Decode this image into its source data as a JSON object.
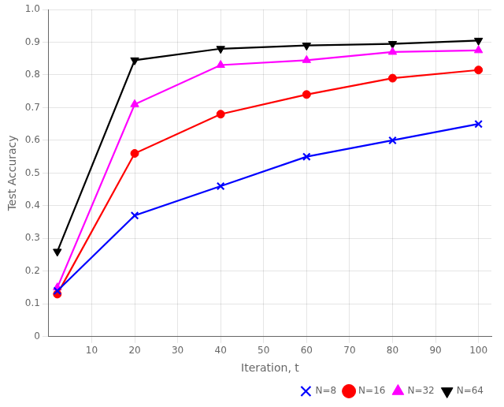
{
  "chart_data": {
    "type": "line",
    "x": [
      2,
      20,
      40,
      60,
      80,
      100
    ],
    "series": [
      {
        "name": "N=8",
        "color": "#0000ff",
        "marker": "x",
        "values": [
          0.14,
          0.37,
          0.46,
          0.55,
          0.6,
          0.65
        ]
      },
      {
        "name": "N=16",
        "color": "#ff0000",
        "marker": "circle",
        "values": [
          0.13,
          0.56,
          0.68,
          0.74,
          0.79,
          0.815
        ]
      },
      {
        "name": "N=32",
        "color": "#ff00ff",
        "marker": "triangle-up",
        "values": [
          0.15,
          0.71,
          0.83,
          0.845,
          0.87,
          0.875
        ]
      },
      {
        "name": "N=64",
        "color": "#000000",
        "marker": "triangle-down",
        "values": [
          0.26,
          0.845,
          0.88,
          0.89,
          0.895,
          0.905
        ]
      }
    ],
    "xlabel": "Iteration, t",
    "ylabel": "Test Accuracy",
    "xlim": [
      0,
      103
    ],
    "ylim": [
      0,
      1.0
    ],
    "xticks": [
      10,
      20,
      30,
      40,
      50,
      60,
      70,
      80,
      90,
      100
    ],
    "yticks": [
      0,
      0.1,
      0.2,
      0.3,
      0.4,
      0.5,
      0.6,
      0.7,
      0.8,
      0.9,
      {
        "value": 1.0,
        "label": "1.0"
      }
    ],
    "grid": true,
    "legend": "lower right"
  }
}
